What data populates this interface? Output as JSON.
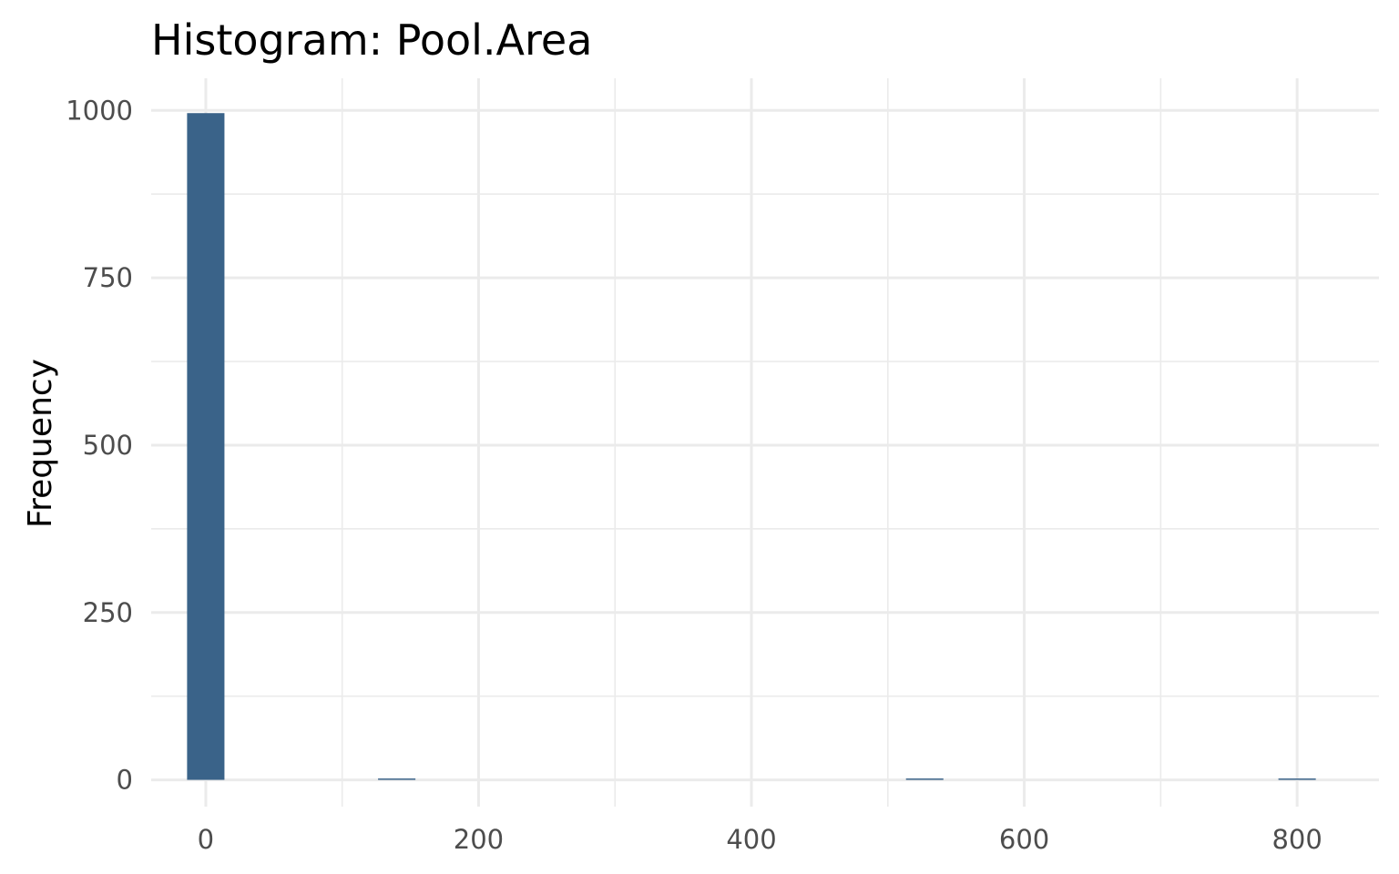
{
  "chart_data": {
    "type": "bar",
    "title": "Histogram:  Pool.Area",
    "xlabel": "",
    "ylabel": "Frequency",
    "xlim": [
      -40,
      860
    ],
    "ylim": [
      -40,
      1048
    ],
    "x_ticks": [
      0,
      200,
      400,
      600,
      800
    ],
    "y_ticks": [
      0,
      250,
      500,
      750,
      1000
    ],
    "grid": true,
    "bar_color": "#3a6389",
    "bin_width": 27.4,
    "bins": [
      {
        "x": 0,
        "value": 996
      },
      {
        "x": 140,
        "value": 1
      },
      {
        "x": 527,
        "value": 1
      },
      {
        "x": 800,
        "value": 1
      }
    ]
  }
}
